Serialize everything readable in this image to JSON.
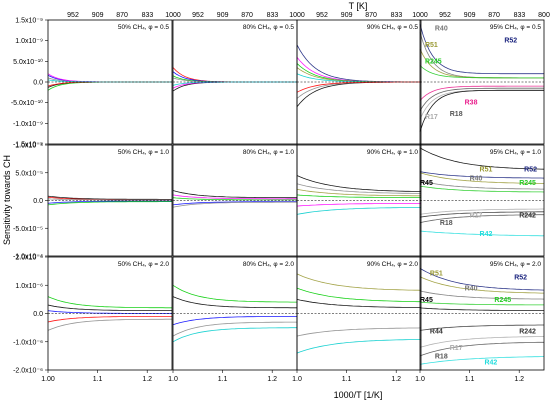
{
  "figure": {
    "top_axis_label": "T [K]",
    "bottom_axis_label": "1000/T [1/K]",
    "y_axis_label": "Sensitivity towards CH"
  },
  "chart_data": {
    "type": "line",
    "x_ticks": [
      "1.0",
      "1.1",
      "1.2"
    ],
    "x_ticks_first_col": [
      "1.00",
      "1.1",
      "1.2"
    ],
    "top_ticks": [
      "1000",
      "952",
      "909",
      "870",
      "833",
      "800"
    ],
    "top_ticks_first_col": [
      "952",
      "909",
      "870",
      "833"
    ],
    "xlim": [
      1.0,
      1.25
    ],
    "rows": [
      {
        "ylim": [
          -1.5e-09,
          1.5e-09
        ],
        "y_ticks": [
          "1.5x10⁻⁹",
          "1.0x10⁻⁹",
          "5.0x10⁻¹⁰",
          "0.0",
          "-5.0x10⁻¹⁰",
          "-1.0x10⁻⁹",
          "-1.5x10⁻⁹"
        ],
        "y_values": [
          1.5e-09,
          1e-09,
          5e-10,
          0,
          -5e-10,
          -1e-09,
          -1.5e-09
        ]
      },
      {
        "ylim": [
          -0.0001,
          0.0001
        ],
        "y_ticks": [
          "1.0x10⁻⁴",
          "5.0x10⁻⁵",
          "0.0",
          "-5.0x10⁻⁵",
          "-1.0x10⁻⁴"
        ],
        "y_values": [
          0.0001,
          5e-05,
          0,
          -5e-05,
          -0.0001
        ]
      },
      {
        "ylim": [
          -2e-06,
          2e-06
        ],
        "y_ticks": [
          "2.0x10⁻⁶",
          "1.0x10⁻⁶",
          "0.0",
          "-1.0x10⁻⁶",
          "-2.0x10⁻⁶"
        ],
        "y_values": [
          2e-06,
          1e-06,
          0,
          -1e-06,
          -2e-06
        ]
      }
    ],
    "panel_titles": [
      [
        "50% CH₄, φ = 0.5",
        "80% CH₄, φ = 0.5",
        "90% CH₄, φ = 0.5",
        "95% CH₄, φ = 0.5"
      ],
      [
        "50% CH₄, φ = 1.0",
        "80% CH₄, φ = 1.0",
        "90% CH₄, φ = 1.0",
        "95% CH₄, φ = 1.0"
      ],
      [
        "50% CH₄, φ = 2.0",
        "80% CH₄, φ = 2.0",
        "90% CH₄, φ = 2.0",
        "95% CH₄, φ = 2.0"
      ]
    ],
    "annotations": [
      {
        "row": 0,
        "text": "R40",
        "color": "#777777",
        "x": 1.03,
        "y": 1.25e-09
      },
      {
        "row": 0,
        "text": "R51",
        "color": "#999933",
        "x": 1.01,
        "y": 8.5e-10
      },
      {
        "row": 0,
        "text": "R52",
        "color": "#1a237e",
        "x": 1.17,
        "y": 9.5e-10
      },
      {
        "row": 0,
        "text": "R245",
        "color": "#22cc22",
        "x": 1.01,
        "y": 4.5e-10
      },
      {
        "row": 0,
        "text": "R38",
        "color": "#e91e8c",
        "x": 1.09,
        "y": -5.5e-10
      },
      {
        "row": 0,
        "text": "R18",
        "color": "#555555",
        "x": 1.06,
        "y": -8.2e-10
      },
      {
        "row": 0,
        "text": "R17",
        "color": "#aaaaaa",
        "x": 1.01,
        "y": -9e-10
      },
      {
        "row": 1,
        "text": "R51",
        "color": "#999933",
        "x": 1.12,
        "y": 5.2e-05
      },
      {
        "row": 1,
        "text": "R52",
        "color": "#1a237e",
        "x": 1.21,
        "y": 5.2e-05
      },
      {
        "row": 1,
        "text": "R40",
        "color": "#777777",
        "x": 1.1,
        "y": 3.6e-05
      },
      {
        "row": 1,
        "text": "R45",
        "color": "#000000",
        "x": 1.0,
        "y": 2.8e-05
      },
      {
        "row": 1,
        "text": "R245",
        "color": "#22cc22",
        "x": 1.2,
        "y": 2.8e-05
      },
      {
        "row": 1,
        "text": "R17",
        "color": "#aaaaaa",
        "x": 1.1,
        "y": -3.1e-05
      },
      {
        "row": 1,
        "text": "R242",
        "color": "#333333",
        "x": 1.2,
        "y": -3.1e-05
      },
      {
        "row": 1,
        "text": "R18",
        "color": "#555555",
        "x": 1.04,
        "y": -4.4e-05
      },
      {
        "row": 1,
        "text": "R42",
        "color": "#22dddd",
        "x": 1.12,
        "y": -6.4e-05
      },
      {
        "row": 2,
        "text": "R51",
        "color": "#999933",
        "x": 1.02,
        "y": 1.35e-06
      },
      {
        "row": 2,
        "text": "R52",
        "color": "#1a237e",
        "x": 1.19,
        "y": 1.2e-06
      },
      {
        "row": 2,
        "text": "R40",
        "color": "#777777",
        "x": 1.09,
        "y": 8.2e-07
      },
      {
        "row": 2,
        "text": "R45",
        "color": "#000000",
        "x": 1.0,
        "y": 4e-07
      },
      {
        "row": 2,
        "text": "R245",
        "color": "#22cc22",
        "x": 1.15,
        "y": 4e-07
      },
      {
        "row": 2,
        "text": "R44",
        "color": "#333333",
        "x": 1.02,
        "y": -7e-07
      },
      {
        "row": 2,
        "text": "R242",
        "color": "#333333",
        "x": 1.2,
        "y": -7e-07
      },
      {
        "row": 2,
        "text": "R17",
        "color": "#aaaaaa",
        "x": 1.06,
        "y": -1.3e-06
      },
      {
        "row": 2,
        "text": "R18",
        "color": "#555555",
        "x": 1.03,
        "y": -1.6e-06
      },
      {
        "row": 2,
        "text": "R42",
        "color": "#22dddd",
        "x": 1.13,
        "y": -1.8e-06
      }
    ],
    "series_palette": [
      "#000000",
      "#ff0000",
      "#0000ff",
      "#00cc00",
      "#ff00ff",
      "#888888",
      "#00cccc",
      "#999933",
      "#884400",
      "#1a237e",
      "#e91e8c",
      "#444444",
      "#aaaaaa",
      "#66bb66"
    ],
    "curves": [
      [
        [
          [
            "#0000ff",
            1.6e-10,
            0.0,
            0.1
          ],
          [
            "#ff00ff",
            2e-10,
            0.0,
            0.1
          ],
          [
            "#000000",
            -1.3e-10,
            0.0,
            0.1
          ],
          [
            "#00cc00",
            -2e-10,
            0.0,
            0.1
          ],
          [
            "#888888",
            1e-10,
            0.0,
            0.1
          ],
          [
            "#ff0000",
            -1e-10,
            0.0,
            0.1
          ],
          [
            "#00cccc",
            5e-11,
            0.0,
            0.1
          ]
        ],
        [
          [
            "#ff0000",
            3.5e-10,
            0.0,
            0.1
          ],
          [
            "#0000ff",
            2.5e-10,
            0.0,
            0.1
          ],
          [
            "#00cc00",
            1.5e-10,
            0.0,
            0.1
          ],
          [
            "#000000",
            -2.2e-10,
            0.0,
            0.1
          ],
          [
            "#ff00ff",
            -1.5e-10,
            0.0,
            0.1
          ],
          [
            "#888888",
            1e-10,
            0.0,
            0.1
          ],
          [
            "#00cccc",
            -8e-11,
            0.0,
            0.1
          ]
        ],
        [
          [
            "#1a237e",
            9e-10,
            0.0,
            0.15
          ],
          [
            "#ff00ff",
            6e-10,
            0.0,
            0.15
          ],
          [
            "#00cc00",
            4.5e-10,
            0.0,
            0.15
          ],
          [
            "#999933",
            3.5e-10,
            0.0,
            0.15
          ],
          [
            "#000000",
            -6e-10,
            0.0,
            0.15
          ],
          [
            "#888888",
            -4e-10,
            0.0,
            0.15
          ],
          [
            "#00cccc",
            2e-10,
            0.0,
            0.15
          ],
          [
            "#ff0000",
            -2.5e-10,
            0.0,
            0.15
          ]
        ],
        [
          [
            "#1a237e",
            1.4e-09,
            2e-10,
            0.1
          ],
          [
            "#777777",
            1.2e-09,
            1e-10,
            0.1
          ],
          [
            "#999933",
            8e-10,
            1e-10,
            0.1
          ],
          [
            "#22cc22",
            4e-10,
            1e-10,
            0.1
          ],
          [
            "#e91e8c",
            -4.5e-10,
            -1e-10,
            0.1
          ],
          [
            "#555555",
            -7e-10,
            -1.5e-10,
            0.1
          ],
          [
            "#aaaaaa",
            -9e-10,
            -2e-10,
            0.1
          ],
          [
            "#000000",
            -1.2e-09,
            -2e-10,
            0.1
          ]
        ]
      ],
      [
        [
          [
            "#000000",
            8e-06,
            2e-06,
            0.2
          ],
          [
            "#ff0000",
            6e-06,
            1e-06,
            0.2
          ],
          [
            "#0000ff",
            -5e-06,
            -1e-06,
            0.2
          ],
          [
            "#00cc00",
            -8e-06,
            -2e-06,
            0.2
          ],
          [
            "#888888",
            3e-06,
            1e-06,
            0.2
          ]
        ],
        [
          [
            "#000000",
            1.8e-05,
            5e-06,
            0.2
          ],
          [
            "#ff00ff",
            1e-05,
            3e-06,
            0.2
          ],
          [
            "#00cc00",
            5e-06,
            1e-06,
            0.2
          ],
          [
            "#0000ff",
            -8e-06,
            -2e-06,
            0.2
          ],
          [
            "#888888",
            -1.2e-05,
            -3e-06,
            0.2
          ]
        ],
        [
          [
            "#000000",
            4.5e-05,
            1.5e-05,
            0.3
          ],
          [
            "#888888",
            3e-05,
            1.2e-05,
            0.3
          ],
          [
            "#999933",
            2e-05,
            8e-06,
            0.3
          ],
          [
            "#00cc00",
            1e-05,
            5e-06,
            0.3
          ],
          [
            "#00cccc",
            -2.5e-05,
            -1.2e-05,
            0.3
          ],
          [
            "#ff00ff",
            -1e-05,
            -5e-06,
            0.3
          ]
        ],
        [
          [
            "#000000",
            9.5e-05,
            5.5e-05,
            0.3
          ],
          [
            "#1a237e",
            5.2e-05,
            4e-05,
            0.3
          ],
          [
            "#999933",
            5e-05,
            3e-05,
            0.3
          ],
          [
            "#777777",
            3.5e-05,
            2e-05,
            0.3
          ],
          [
            "#22cc22",
            2.6e-05,
            1.5e-05,
            0.3
          ],
          [
            "#aaaaaa",
            -2.5e-05,
            -1.5e-05,
            0.3
          ],
          [
            "#555555",
            -4e-05,
            -2.5e-05,
            0.3
          ],
          [
            "#333333",
            -3e-05,
            -2e-05,
            0.3
          ],
          [
            "#22dddd",
            -5.5e-05,
            -6.5e-05,
            0.5
          ]
        ]
      ],
      [
        [
          [
            "#00cc00",
            6e-07,
            2e-07,
            0.2
          ],
          [
            "#000000",
            3e-07,
            1e-07,
            0.2
          ],
          [
            "#ff0000",
            -3e-07,
            -1e-07,
            0.2
          ],
          [
            "#888888",
            -6e-07,
            -2e-07,
            0.2
          ],
          [
            "#0000ff",
            1e-07,
            0.0,
            0.2
          ]
        ],
        [
          [
            "#00cc00",
            1e-06,
            4e-07,
            0.2
          ],
          [
            "#000000",
            6e-07,
            2e-07,
            0.2
          ],
          [
            "#888888",
            -8e-07,
            -3e-07,
            0.2
          ],
          [
            "#0000ff",
            -4e-07,
            -1e-07,
            0.2
          ],
          [
            "#00cccc",
            -1e-06,
            -5e-07,
            0.2
          ]
        ],
        [
          [
            "#999933",
            1.4e-06,
            8e-07,
            0.3
          ],
          [
            "#00cc00",
            9e-07,
            4e-07,
            0.3
          ],
          [
            "#000000",
            5e-07,
            2e-07,
            0.3
          ],
          [
            "#888888",
            -8e-07,
            -5e-07,
            0.3
          ],
          [
            "#00cccc",
            -1.4e-06,
            -9e-07,
            0.3
          ]
        ],
        [
          [
            "#1a237e",
            1.6e-06,
            8e-07,
            0.3
          ],
          [
            "#999933",
            1.3e-06,
            7e-07,
            0.3
          ],
          [
            "#777777",
            8e-07,
            5e-07,
            0.3
          ],
          [
            "#22cc22",
            4e-07,
            3e-07,
            0.3
          ],
          [
            "#000000",
            2e-07,
            1e-07,
            0.3
          ],
          [
            "#333333",
            -6e-07,
            -4e-07,
            0.3
          ],
          [
            "#aaaaaa",
            -1.2e-06,
            -8e-07,
            0.3
          ],
          [
            "#555555",
            -1.5e-06,
            -1e-06,
            0.3
          ],
          [
            "#22dddd",
            -1.8e-06,
            -1.5e-06,
            0.4
          ]
        ]
      ]
    ]
  }
}
